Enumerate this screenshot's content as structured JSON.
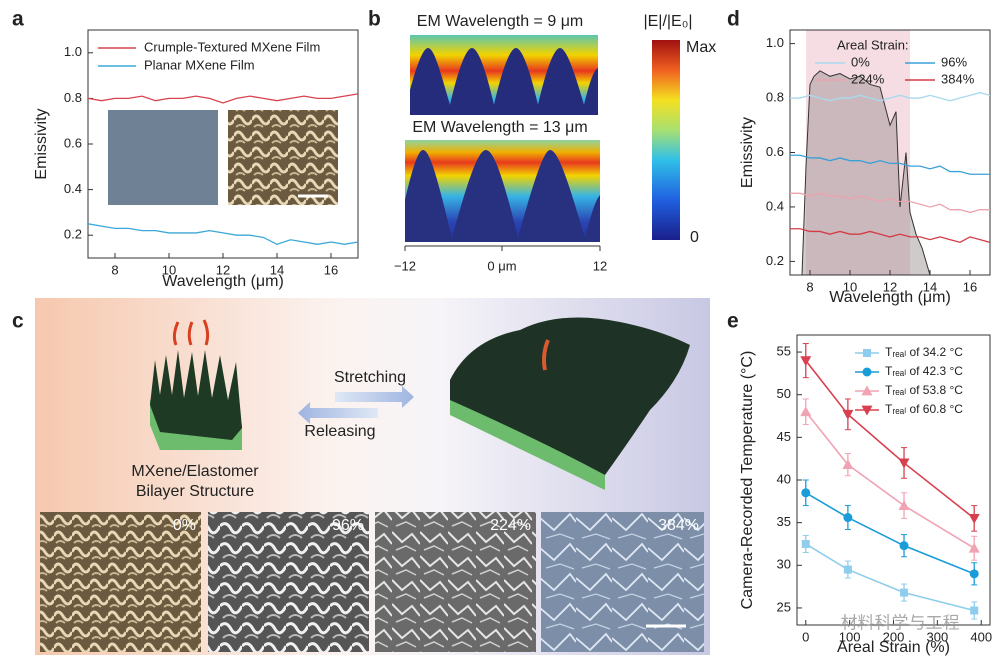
{
  "panel_labels": [
    "a",
    "b",
    "c",
    "d",
    "e"
  ],
  "chart_data": [
    {
      "type": "line",
      "xlabel": "Wavelength (μm)",
      "ylabel": "Emissivity",
      "x": [
        7,
        7.5,
        8,
        8.5,
        9,
        9.5,
        10,
        10.5,
        11,
        11.5,
        12,
        12.5,
        13,
        13.5,
        14,
        14.5,
        15,
        15.5,
        16,
        16.5,
        17
      ],
      "xlim": [
        7,
        17
      ],
      "ylim": [
        0.1,
        1.1
      ],
      "xticks": [
        8,
        10,
        12,
        14,
        16
      ],
      "yticks": [
        0.2,
        0.4,
        0.6,
        0.8,
        {
          "value": 1,
          "label": "1.0"
        }
      ],
      "series": [
        {
          "name": "Crumple-Textured MXene Film",
          "color": "#d9434e",
          "values": [
            0.8,
            0.79,
            0.8,
            0.8,
            0.81,
            0.79,
            0.8,
            0.8,
            0.81,
            0.8,
            0.78,
            0.8,
            0.81,
            0.8,
            0.79,
            0.8,
            0.81,
            0.8,
            0.8,
            0.81,
            0.82
          ]
        },
        {
          "name": "Planar MXene Film",
          "color": "#3aa8d8",
          "values": [
            0.25,
            0.24,
            0.23,
            0.23,
            0.22,
            0.22,
            0.21,
            0.21,
            0.21,
            0.22,
            0.21,
            0.2,
            0.2,
            0.19,
            0.16,
            0.18,
            0.17,
            0.16,
            0.17,
            0.16,
            0.17
          ]
        }
      ]
    },
    {
      "type": "line",
      "xlabel": "Wavelength (μm)",
      "ylabel": "Emissivity",
      "legend_title": "Areal Strain:",
      "x": [
        7,
        7.5,
        8,
        8.5,
        9,
        9.5,
        10,
        10.5,
        11,
        11.5,
        12,
        12.5,
        13,
        13.5,
        14,
        14.5,
        15,
        15.5,
        16,
        16.5,
        17
      ],
      "xlim": [
        7,
        17
      ],
      "ylim": [
        0.15,
        1.05
      ],
      "xticks": [
        8,
        10,
        12,
        14,
        16
      ],
      "yticks": [
        0.2,
        0.4,
        0.6,
        0.8,
        {
          "value": 1,
          "label": "1.0"
        }
      ],
      "highlight": [
        7.8,
        13
      ],
      "transmittance": {
        "x": [
          7.6,
          7.8,
          8,
          8.2,
          8.5,
          9,
          9.5,
          10,
          10.5,
          11,
          11.5,
          12,
          12.3,
          12.5,
          12.8,
          13,
          13.3,
          13.6,
          14
        ],
        "values": [
          0.15,
          0.55,
          0.85,
          0.88,
          0.9,
          0.88,
          0.89,
          0.87,
          0.88,
          0.85,
          0.84,
          0.7,
          0.75,
          0.4,
          0.6,
          0.38,
          0.3,
          0.25,
          0.15
        ]
      },
      "series": [
        {
          "name": "0%",
          "color": "#a9d9ef",
          "values": [
            0.8,
            0.8,
            0.81,
            0.8,
            0.79,
            0.8,
            0.8,
            0.81,
            0.8,
            0.79,
            0.8,
            0.81,
            0.8,
            0.8,
            0.81,
            0.8,
            0.79,
            0.8,
            0.81,
            0.82,
            0.81
          ]
        },
        {
          "name": "96%",
          "color": "#3aa0d8",
          "values": [
            0.59,
            0.59,
            0.58,
            0.58,
            0.57,
            0.58,
            0.57,
            0.57,
            0.56,
            0.57,
            0.56,
            0.56,
            0.55,
            0.55,
            0.54,
            0.55,
            0.53,
            0.53,
            0.52,
            0.52,
            0.52
          ]
        },
        {
          "name": "224%",
          "color": "#eda3ae",
          "values": [
            0.45,
            0.45,
            0.44,
            0.45,
            0.44,
            0.44,
            0.43,
            0.44,
            0.43,
            0.42,
            0.43,
            0.42,
            0.42,
            0.41,
            0.4,
            0.41,
            0.39,
            0.39,
            0.38,
            0.39,
            0.39
          ]
        },
        {
          "name": "384%",
          "color": "#d33c45",
          "values": [
            0.32,
            0.32,
            0.31,
            0.31,
            0.3,
            0.31,
            0.3,
            0.3,
            0.31,
            0.3,
            0.29,
            0.3,
            0.29,
            0.29,
            0.28,
            0.29,
            0.28,
            0.27,
            0.29,
            0.28,
            0.27
          ]
        }
      ]
    },
    {
      "type": "line",
      "xlabel": "Areal Strain (%)",
      "ylabel": "Camera-Recorded Temperature (°C)",
      "x": [
        0,
        96,
        224,
        384
      ],
      "xlim": [
        -20,
        420
      ],
      "ylim": [
        23,
        57
      ],
      "xticks": [
        0,
        100,
        200,
        300,
        400
      ],
      "yticks": [
        25,
        30,
        35,
        40,
        45,
        50,
        55
      ],
      "series": [
        {
          "name": "Tᵣₑₐₗ of 34.2 °C",
          "color": "#8fcdec",
          "marker": "square",
          "values": [
            32.5,
            29.5,
            26.8,
            24.7
          ],
          "errors": [
            1.0,
            1.0,
            1.0,
            1.0
          ]
        },
        {
          "name": "Tᵣₑₐₗ of 42.3 °C",
          "color": "#1a9cd8",
          "marker": "circle",
          "values": [
            38.5,
            35.6,
            32.3,
            29.0
          ],
          "errors": [
            1.5,
            1.4,
            1.3,
            1.3
          ]
        },
        {
          "name": "Tᵣₑₐₗ of 53.8 °C",
          "color": "#f0a3b3",
          "marker": "triangle-up",
          "values": [
            48.0,
            41.8,
            37.0,
            32.0
          ],
          "errors": [
            1.5,
            1.3,
            1.5,
            1.4
          ]
        },
        {
          "name": "Tᵣₑₐₗ of 60.8 °C",
          "color": "#d8404f",
          "marker": "triangle-down",
          "values": [
            54.0,
            47.7,
            42.0,
            35.5
          ],
          "errors": [
            2.0,
            1.8,
            1.8,
            1.5
          ]
        }
      ]
    }
  ],
  "simulation": {
    "titles": [
      "EM Wavelength = 9 μm",
      "EM Wavelength = 13 μm"
    ],
    "colorbar_title": "|E|/|E₀|",
    "colorbar_labels": [
      "Max",
      "0"
    ],
    "axis_labels": [
      "−12",
      "0 μm",
      "12"
    ]
  },
  "schematic": {
    "stretching": "Stretching",
    "releasing": "Releasing",
    "structure": [
      "MXene/Elastomer",
      "Bilayer Structure"
    ],
    "sem_labels": [
      "0%",
      "96%",
      "224%",
      "384%"
    ]
  },
  "watermark": "材料科学与工程"
}
